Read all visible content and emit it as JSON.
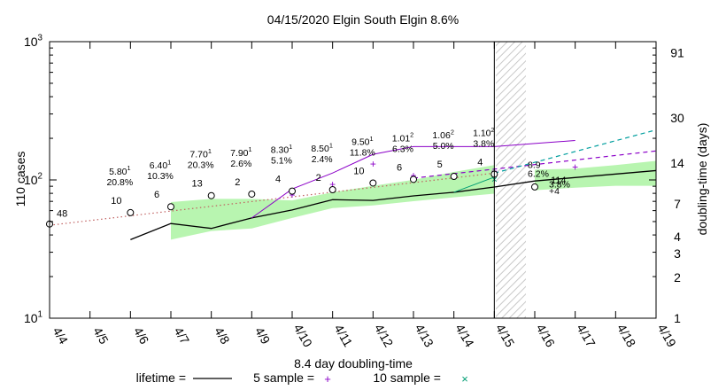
{
  "chart_data": {
    "type": "line",
    "title": "04/15/2020 Elgin South Elgin 8.6%",
    "ylabel": "110 cases",
    "y2label": "doubling-time (days)",
    "xlabel": "8.4 day doubling-time",
    "y_scale": "log",
    "ylim": [
      10,
      1000
    ],
    "y_ticks": [
      {
        "value": 10,
        "base": "10",
        "exp": "1"
      },
      {
        "value": 100,
        "base": "10",
        "exp": "2"
      },
      {
        "value": 1000,
        "base": "10",
        "exp": "3"
      }
    ],
    "y2_scale": "log",
    "y2lim": [
      1,
      110
    ],
    "y2_ticks": [
      {
        "value": 1,
        "label": "1"
      },
      {
        "value": 2,
        "label": "2"
      },
      {
        "value": 3,
        "label": "3"
      },
      {
        "value": 4,
        "label": "4"
      },
      {
        "value": 7,
        "label": "7"
      },
      {
        "value": 14,
        "label": "14"
      },
      {
        "value": 30,
        "label": "30"
      },
      {
        "value": 91,
        "label": "91"
      }
    ],
    "x_categories": [
      "4/4",
      "4/5",
      "4/6",
      "4/7",
      "4/8",
      "4/9",
      "4/10",
      "4/11",
      "4/12",
      "4/13",
      "4/14",
      "4/15",
      "4/16",
      "4/17",
      "4/18",
      "4/19"
    ],
    "grid": false,
    "cases": [
      {
        "x": "4/4",
        "y": 48,
        "label": "48"
      },
      {
        "x": "4/6",
        "y": 58,
        "label": "10"
      },
      {
        "x": "4/7",
        "y": 64,
        "label": "6"
      },
      {
        "x": "4/8",
        "y": 77,
        "label": "13"
      },
      {
        "x": "4/9",
        "y": 79,
        "label": "2"
      },
      {
        "x": "4/10",
        "y": 83,
        "label": "4"
      },
      {
        "x": "4/11",
        "y": 85,
        "label": "2"
      },
      {
        "x": "4/12",
        "y": 95,
        "label": "10"
      },
      {
        "x": "4/13",
        "y": 101,
        "label": "6"
      },
      {
        "x": "4/14",
        "y": 106,
        "label": "5"
      },
      {
        "x": "4/15",
        "y": 110,
        "label": "4"
      },
      {
        "x": "4/16",
        "y": 89,
        "label": "114"
      }
    ],
    "projection_annotations": [
      {
        "x": "4/6",
        "base": "5.80",
        "exp": "1",
        "pct": "20.8%"
      },
      {
        "x": "4/7",
        "base": "6.40",
        "exp": "1",
        "pct": "10.3%"
      },
      {
        "x": "4/8",
        "base": "7.70",
        "exp": "1",
        "pct": "20.3%"
      },
      {
        "x": "4/9",
        "base": "7.90",
        "exp": "1",
        "pct": "2.6%"
      },
      {
        "x": "4/10",
        "base": "8.30",
        "exp": "1",
        "pct": "5.1%"
      },
      {
        "x": "4/11",
        "base": "8.50",
        "exp": "1",
        "pct": "2.4%"
      },
      {
        "x": "4/12",
        "base": "9.50",
        "exp": "1",
        "pct": "11.8%"
      },
      {
        "x": "4/13",
        "base": "1.01",
        "exp": "2",
        "pct": "6.3%"
      },
      {
        "x": "4/14",
        "base": "1.06",
        "exp": "2",
        "pct": "5.0%"
      },
      {
        "x": "4/15",
        "base": "1.10",
        "exp": "2",
        "pct": "3.8%"
      }
    ],
    "forecast_labels": [
      {
        "text": "8.9",
        "x": "4/16",
        "y": 122
      },
      {
        "text": "6.2%",
        "x": "4/16",
        "y": 105
      },
      {
        "text": "3.8%",
        "x": "4/16",
        "y": 88
      },
      {
        "text": "+4",
        "x": "4/16",
        "y": 79
      }
    ],
    "doubling_time_series": [
      {
        "name": "lifetime",
        "color": "#000000",
        "points": [
          [
            "4/6",
            3.8
          ],
          [
            "4/7",
            5.0
          ],
          [
            "4/8",
            4.6
          ],
          [
            "4/9",
            5.5
          ],
          [
            "4/10",
            6.3
          ],
          [
            "4/11",
            7.5
          ],
          [
            "4/12",
            7.4
          ],
          [
            "4/13",
            8.0
          ],
          [
            "4/14",
            8.5
          ],
          [
            "4/15",
            9.3
          ],
          [
            "4/16",
            10.3
          ],
          [
            "4/19",
            12.3
          ]
        ]
      },
      {
        "name": "5 sample",
        "color": "#8b00c8",
        "points": [
          [
            "4/9",
            5.5
          ],
          [
            "4/10",
            9.0
          ],
          [
            "4/11",
            11.8
          ],
          [
            "4/12",
            16.2
          ],
          [
            "4/13",
            18.5
          ],
          [
            "4/14",
            18.5
          ],
          [
            "4/15",
            18.5
          ],
          [
            "4/16",
            19.5
          ],
          [
            "4/17",
            20.5
          ]
        ]
      },
      {
        "name": "10 sample",
        "color": "#009e73",
        "points": [
          [
            "4/14",
            8.5
          ],
          [
            "4/15",
            11.0
          ]
        ]
      }
    ],
    "doubling_band": {
      "color": "#b8f5b0",
      "segments": [
        [
          [
            "4/7",
            3.8,
            7.2
          ],
          [
            "4/8",
            4.4,
            7.6
          ],
          [
            "4/9",
            4.6,
            7.6
          ],
          [
            "4/10",
            5.5,
            7.4
          ],
          [
            "4/11",
            6.5,
            8.5
          ],
          [
            "4/12",
            6.8,
            9.5
          ],
          [
            "4/13",
            7.3,
            10.5
          ],
          [
            "4/14",
            7.8,
            12.0
          ],
          [
            "4/15",
            8.3,
            13.5
          ]
        ],
        [
          [
            "4/16",
            8.8,
            12.5
          ],
          [
            "4/17",
            9.2,
            12.7
          ],
          [
            "4/18",
            9.5,
            13.5
          ],
          [
            "4/19",
            9.5,
            14.5
          ]
        ]
      ]
    },
    "fit_lines": [
      {
        "style": "dotted",
        "color": "#c06060",
        "from": [
          "4/4",
          47
        ],
        "to": [
          "4/15",
          112
        ]
      },
      {
        "style": "dashed",
        "color": "#8b00c8",
        "from": [
          "4/13",
          103
        ],
        "to": [
          "4/19",
          162
        ]
      },
      {
        "style": "dashed",
        "color": "#009e9e",
        "from": [
          "4/15",
          112
        ],
        "to": [
          "4/19",
          230
        ]
      }
    ],
    "marker_glyphs": [
      {
        "symbol": "+",
        "color": "#8b00c8",
        "x": "4/10",
        "y": 78
      },
      {
        "symbol": "+",
        "color": "#8b00c8",
        "x": "4/11",
        "y": 93
      },
      {
        "symbol": "+",
        "color": "#8b00c8",
        "x": "4/12",
        "y": 130
      },
      {
        "symbol": "+",
        "color": "#8b00c8",
        "x": "4/13",
        "y": 108
      },
      {
        "symbol": "+",
        "color": "#8b00c8",
        "x": "4/14",
        "y": 106
      },
      {
        "symbol": "+",
        "color": "#8b00c8",
        "x": "4/15",
        "y": 116
      },
      {
        "symbol": "+",
        "color": "#8b00c8",
        "x": "4/17",
        "y": 124
      },
      {
        "symbol": "×",
        "color": "#009e73",
        "x": "4/15",
        "y": 101
      }
    ],
    "today_line_x": "4/15",
    "legend": {
      "placement": "bottom",
      "entries": [
        {
          "label": "lifetime =",
          "color": "#000000",
          "kind": "line"
        },
        {
          "label": "5 sample =",
          "color": "#8b00c8",
          "kind": "plus"
        },
        {
          "label": "10 sample =",
          "color": "#009e73",
          "kind": "cross"
        }
      ]
    }
  }
}
